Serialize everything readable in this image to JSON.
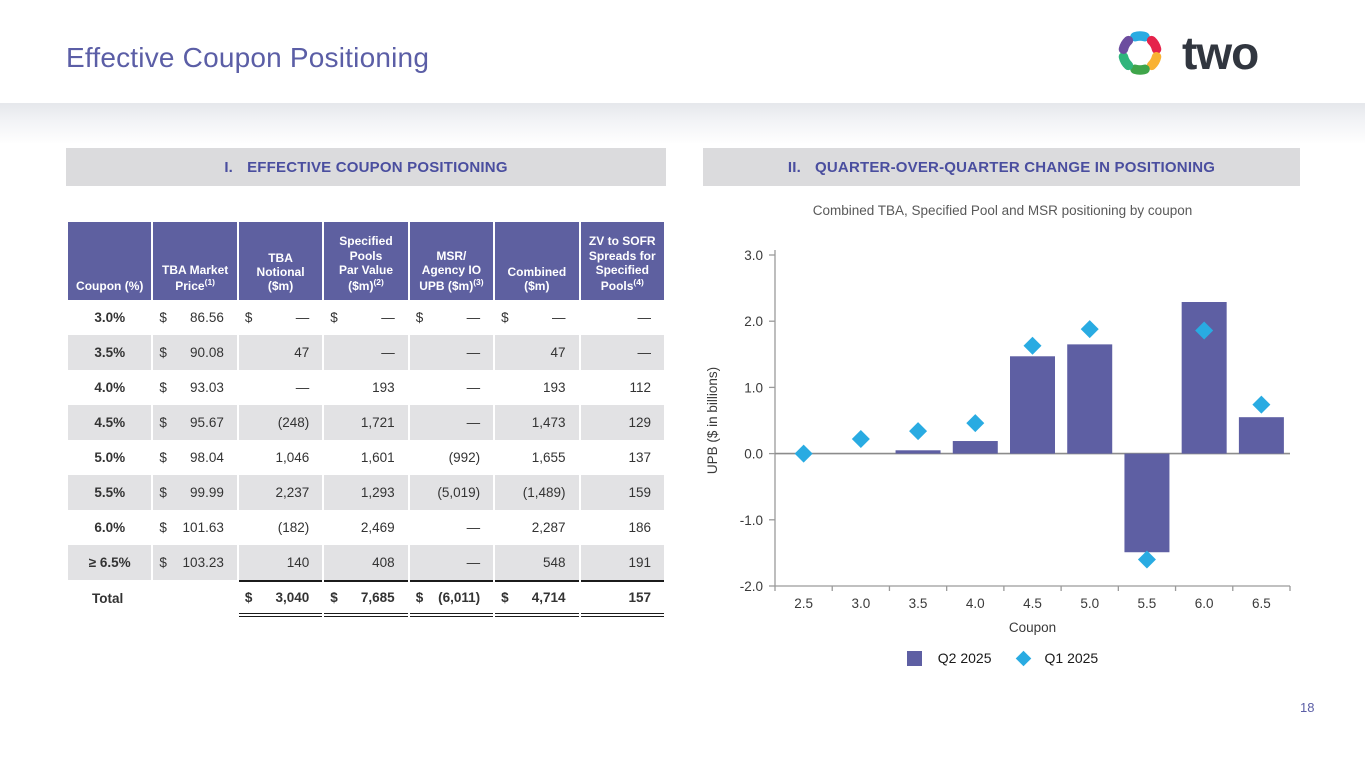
{
  "slide": {
    "title": "Effective Coupon Positioning",
    "page_number": "18",
    "logo_text": "two"
  },
  "colors": {
    "accent_purple": "#5B5EA6",
    "table_header_purple": "#5E60A0",
    "bar_purple": "#5E5FA3",
    "diamond_cyan": "#29ABE2",
    "section_band_gray": "#DBDBDD",
    "stripe_gray": "#E2E2E4"
  },
  "left_panel": {
    "section_label": "I.",
    "section_title": "EFFECTIVE COUPON POSITIONING",
    "table": {
      "headers": [
        {
          "text": "Coupon (%)",
          "sup": ""
        },
        {
          "text": "TBA Market\nPrice",
          "sup": "(1)"
        },
        {
          "text": "TBA\nNotional\n($m)",
          "sup": ""
        },
        {
          "text": "Specified\nPools\nPar Value\n($m)",
          "sup": "(2)"
        },
        {
          "text": "MSR/\nAgency IO\nUPB ($m)",
          "sup": "(3)"
        },
        {
          "text": "Combined\n($m)",
          "sup": ""
        },
        {
          "text": "ZV to SOFR\nSpreads for\nSpecified\nPools",
          "sup": "(4)"
        }
      ],
      "rows": [
        {
          "coupon": "3.0%",
          "cells": [
            [
              "$",
              "86.56"
            ],
            [
              "$",
              "—"
            ],
            [
              "$",
              "—"
            ],
            [
              "$",
              "—"
            ],
            [
              "$",
              "—"
            ],
            [
              "",
              "—"
            ]
          ]
        },
        {
          "coupon": "3.5%",
          "cells": [
            [
              "$",
              "90.08"
            ],
            [
              "",
              "47"
            ],
            [
              "",
              "—"
            ],
            [
              "",
              "—"
            ],
            [
              "",
              "47"
            ],
            [
              "",
              "—"
            ]
          ]
        },
        {
          "coupon": "4.0%",
          "cells": [
            [
              "$",
              "93.03"
            ],
            [
              "",
              "—"
            ],
            [
              "",
              "193"
            ],
            [
              "",
              "—"
            ],
            [
              "",
              "193"
            ],
            [
              "",
              "112"
            ]
          ]
        },
        {
          "coupon": "4.5%",
          "cells": [
            [
              "$",
              "95.67"
            ],
            [
              "",
              "(248)"
            ],
            [
              "",
              "1,721"
            ],
            [
              "",
              "—"
            ],
            [
              "",
              "1,473"
            ],
            [
              "",
              "129"
            ]
          ]
        },
        {
          "coupon": "5.0%",
          "cells": [
            [
              "$",
              "98.04"
            ],
            [
              "",
              "1,046"
            ],
            [
              "",
              "1,601"
            ],
            [
              "",
              "(992)"
            ],
            [
              "",
              "1,655"
            ],
            [
              "",
              "137"
            ]
          ]
        },
        {
          "coupon": "5.5%",
          "cells": [
            [
              "$",
              "99.99"
            ],
            [
              "",
              "2,237"
            ],
            [
              "",
              "1,293"
            ],
            [
              "",
              "(5,019)"
            ],
            [
              "",
              "(1,489)"
            ],
            [
              "",
              "159"
            ]
          ]
        },
        {
          "coupon": "6.0%",
          "cells": [
            [
              "$",
              "101.63"
            ],
            [
              "",
              "(182)"
            ],
            [
              "",
              "2,469"
            ],
            [
              "",
              "—"
            ],
            [
              "",
              "2,287"
            ],
            [
              "",
              "186"
            ]
          ]
        },
        {
          "coupon": "≥ 6.5%",
          "cells": [
            [
              "$",
              "103.23"
            ],
            [
              "",
              "140"
            ],
            [
              "",
              "408"
            ],
            [
              "",
              "—"
            ],
            [
              "",
              "548"
            ],
            [
              "",
              "191"
            ]
          ]
        }
      ],
      "total": {
        "label": "Total",
        "cells": [
          [
            "",
            ""
          ],
          [
            "$",
            "3,040"
          ],
          [
            "$",
            "7,685"
          ],
          [
            "$",
            "(6,011)"
          ],
          [
            "$",
            "4,714"
          ],
          [
            "",
            "157"
          ]
        ]
      }
    }
  },
  "right_panel": {
    "section_label": "II.",
    "section_title": "QUARTER-OVER-QUARTER CHANGE IN POSITIONING"
  },
  "chart_data": {
    "type": "bar",
    "title": "Combined TBA, Specified Pool and MSR positioning by coupon",
    "categories": [
      "2.5",
      "3.0",
      "3.5",
      "4.0",
      "4.5",
      "5.0",
      "5.5",
      "6.0",
      "6.5"
    ],
    "series": [
      {
        "name": "Q2 2025",
        "type": "bar",
        "color": "#5E5FA3",
        "values": [
          0,
          0,
          0.05,
          0.19,
          1.47,
          1.65,
          -1.49,
          2.29,
          0.55
        ]
      },
      {
        "name": "Q1 2025",
        "type": "scatter",
        "marker": "diamond",
        "color": "#29ABE2",
        "values": [
          0.0,
          0.22,
          0.34,
          0.46,
          1.63,
          1.88,
          -1.6,
          1.86,
          0.74
        ]
      }
    ],
    "xlabel": "Coupon",
    "ylabel": "UPB ($ in billions)",
    "ylim": [
      -2.0,
      3.0
    ],
    "ytick_step": 1.0,
    "grid": false,
    "legend_position": "bottom"
  }
}
